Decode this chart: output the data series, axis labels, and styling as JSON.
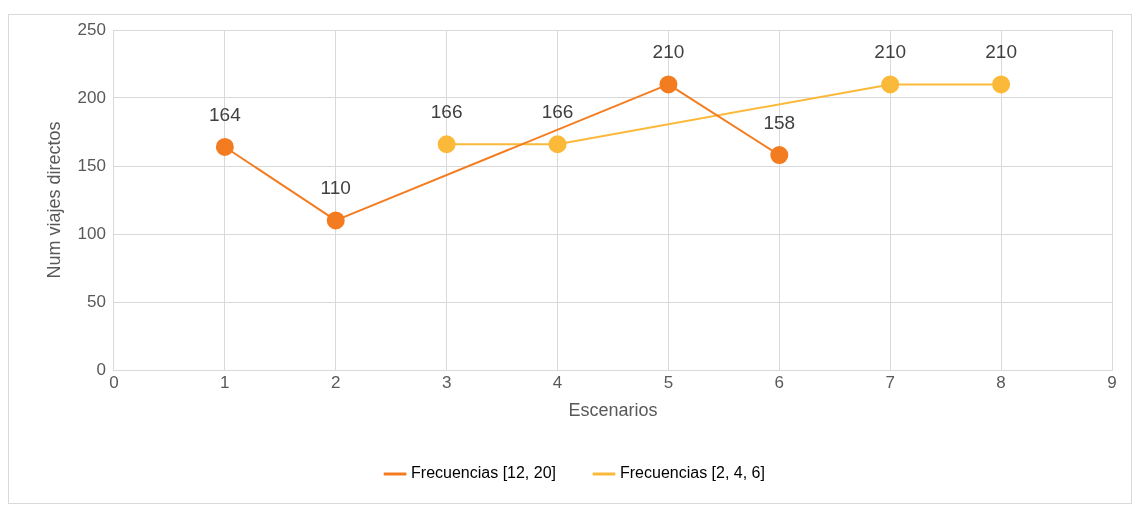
{
  "chart_data": {
    "type": "line",
    "xlabel": "Escenarios",
    "ylabel": "Num viajes directos",
    "xlim": [
      0,
      9
    ],
    "xticks": [
      0,
      1,
      2,
      3,
      4,
      5,
      6,
      7,
      8,
      9
    ],
    "ylim": [
      0,
      250
    ],
    "yticks": [
      0,
      50,
      100,
      150,
      200,
      250
    ],
    "grid": true,
    "legend": "bottom",
    "marker": "circle",
    "line_style": "solid",
    "data_labels": true,
    "series": [
      {
        "name": "Frecuencias [12, 20]",
        "color": "#f47c20",
        "x": [
          1,
          2,
          5,
          6
        ],
        "values": [
          164,
          110,
          210,
          158
        ]
      },
      {
        "name": "Frecuencias [2, 4, 6]",
        "color": "#fbb93a",
        "x": [
          3,
          4,
          7,
          8
        ],
        "values": [
          166,
          166,
          210,
          210
        ]
      }
    ]
  }
}
